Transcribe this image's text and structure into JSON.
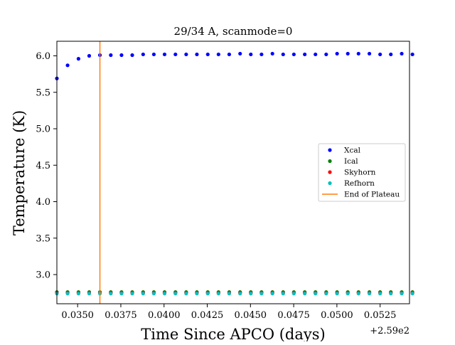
{
  "chart_data": {
    "type": "scatter",
    "title": "29/34 A, scanmode=0",
    "xlabel": "Time Since APCO (days)",
    "ylabel": "Temperature (K)",
    "x_offset_label": "+2.59e2",
    "xlim": [
      0.0338,
      0.0542
    ],
    "ylim": [
      2.6,
      6.2
    ],
    "xticks": [
      0.035,
      0.0375,
      0.04,
      0.0425,
      0.045,
      0.0475,
      0.05,
      0.0525
    ],
    "xtick_labels": [
      "0.0350",
      "0.0375",
      "0.0400",
      "0.0425",
      "0.0450",
      "0.0475",
      "0.0500",
      "0.0525"
    ],
    "yticks": [
      3.0,
      3.5,
      4.0,
      4.5,
      5.0,
      5.5,
      6.0
    ],
    "ytick_labels": [
      "3.0",
      "3.5",
      "4.0",
      "4.5",
      "5.0",
      "5.5",
      "6.0"
    ],
    "grid": false,
    "legend_position": "center-right",
    "x": [
      0.0338,
      0.03442,
      0.03505,
      0.03567,
      0.03629,
      0.03692,
      0.03754,
      0.03816,
      0.03879,
      0.03941,
      0.04003,
      0.04066,
      0.04128,
      0.0419,
      0.04253,
      0.04315,
      0.04377,
      0.0444,
      0.04502,
      0.04564,
      0.04627,
      0.04689,
      0.04751,
      0.04814,
      0.04876,
      0.04938,
      0.05001,
      0.05063,
      0.05125,
      0.05188,
      0.0525,
      0.05312,
      0.05375,
      0.05437
    ],
    "series": [
      {
        "name": "Xcal",
        "color": "#0000ff",
        "values": [
          5.69,
          5.87,
          5.96,
          6.0,
          6.01,
          6.01,
          6.01,
          6.01,
          6.02,
          6.02,
          6.02,
          6.02,
          6.02,
          6.02,
          6.02,
          6.02,
          6.02,
          6.03,
          6.02,
          6.02,
          6.03,
          6.02,
          6.02,
          6.02,
          6.02,
          6.02,
          6.03,
          6.03,
          6.03,
          6.03,
          6.02,
          6.02,
          6.03,
          6.02
        ]
      },
      {
        "name": "Ical",
        "color": "#008000",
        "values": [
          2.76,
          2.76,
          2.76,
          2.76,
          2.76,
          2.76,
          2.76,
          2.76,
          2.76,
          2.76,
          2.76,
          2.76,
          2.76,
          2.76,
          2.76,
          2.76,
          2.76,
          2.76,
          2.76,
          2.76,
          2.76,
          2.76,
          2.76,
          2.76,
          2.76,
          2.76,
          2.76,
          2.76,
          2.76,
          2.76,
          2.76,
          2.76,
          2.76,
          2.76
        ]
      },
      {
        "name": "Skyhorn",
        "color": "#ff0000",
        "values": [
          2.75,
          2.75,
          2.75,
          2.75,
          2.75,
          2.75,
          2.75,
          2.75,
          2.75,
          2.75,
          2.75,
          2.75,
          2.75,
          2.75,
          2.75,
          2.75,
          2.75,
          2.75,
          2.75,
          2.75,
          2.75,
          2.75,
          2.75,
          2.75,
          2.75,
          2.75,
          2.75,
          2.75,
          2.75,
          2.75,
          2.75,
          2.75,
          2.75,
          2.75
        ]
      },
      {
        "name": "Refhorn",
        "color": "#00bfbf",
        "values": [
          2.74,
          2.74,
          2.74,
          2.74,
          2.74,
          2.74,
          2.74,
          2.74,
          2.74,
          2.74,
          2.74,
          2.74,
          2.74,
          2.74,
          2.74,
          2.74,
          2.74,
          2.74,
          2.74,
          2.74,
          2.74,
          2.74,
          2.74,
          2.74,
          2.74,
          2.74,
          2.74,
          2.74,
          2.74,
          2.74,
          2.74,
          2.74,
          2.74,
          2.74
        ]
      }
    ],
    "vline": {
      "name": "End of Plateau",
      "x": 0.03629,
      "color": "#ff7f0e"
    }
  }
}
